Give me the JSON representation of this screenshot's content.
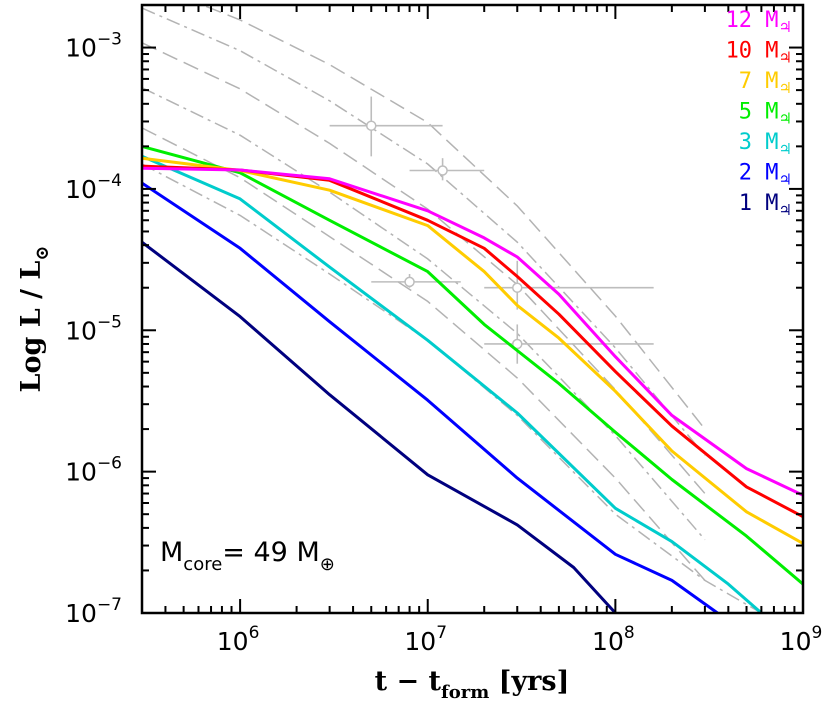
{
  "chart_data": {
    "type": "line",
    "xscale": "log",
    "yscale": "log",
    "xlim": [
      300000,
      1000000000
    ],
    "ylim": [
      1e-07,
      0.002
    ],
    "grid": false,
    "legend_position": "top-right",
    "xlabel": {
      "main": "t  −  t",
      "sub": "form",
      "tail": " [yrs]"
    },
    "ylabel": {
      "main": "Log L / L",
      "sub": "⊙"
    },
    "x_ticks": [
      {
        "value": 1000000,
        "base": "10",
        "exp": "6"
      },
      {
        "value": 10000000,
        "base": "10",
        "exp": "7"
      },
      {
        "value": 100000000,
        "base": "10",
        "exp": "8"
      },
      {
        "value": 1000000000,
        "base": "10",
        "exp": "9"
      }
    ],
    "y_ticks": [
      {
        "value": 0.001,
        "base": "10",
        "exp": "−3"
      },
      {
        "value": 0.0001,
        "base": "10",
        "exp": "−4"
      },
      {
        "value": 1e-05,
        "base": "10",
        "exp": "−5"
      },
      {
        "value": 1e-06,
        "base": "10",
        "exp": "−6"
      },
      {
        "value": 1e-07,
        "base": "10",
        "exp": "−7"
      }
    ],
    "annotation": {
      "prefix": "M",
      "sub": "core",
      "suffix": "=  49  M",
      "sub2": "⊕"
    },
    "series": [
      {
        "name": "12 M",
        "sub": "♃",
        "color": "#ff00ff",
        "x": [
          300000,
          1000000,
          3000000,
          10000000,
          20000000,
          30000000,
          50000000,
          100000000,
          200000000,
          500000000,
          1000000000
        ],
        "y": [
          0.00014,
          0.000136,
          0.000118,
          7e-05,
          4.5e-05,
          3.3e-05,
          1.8e-05,
          6.5e-06,
          2.5e-06,
          1.05e-06,
          6.8e-07
        ]
      },
      {
        "name": "10 M",
        "sub": "♃",
        "color": "#ff0000",
        "x": [
          300000,
          1000000,
          3000000,
          10000000,
          20000000,
          30000000,
          50000000,
          100000000,
          200000000,
          500000000,
          1000000000
        ],
        "y": [
          0.000145,
          0.000136,
          0.000115,
          6e-05,
          3.8e-05,
          2.4e-05,
          1.3e-05,
          5.1e-06,
          2.1e-06,
          7.8e-07,
          4.8e-07
        ]
      },
      {
        "name": "7 M",
        "sub": "♃",
        "color": "#ffcc00",
        "x": [
          300000,
          1000000,
          3000000,
          10000000,
          20000000,
          30000000,
          50000000,
          100000000,
          200000000,
          500000000,
          1000000000
        ],
        "y": [
          0.000165,
          0.000135,
          9.8e-05,
          5.5e-05,
          2.6e-05,
          1.5e-05,
          8.8e-06,
          3.7e-06,
          1.4e-06,
          5.2e-07,
          3.1e-07
        ]
      },
      {
        "name": "5 M",
        "sub": "♃",
        "color": "#00ee00",
        "x": [
          300000,
          1000000,
          3000000,
          10000000,
          20000000,
          50000000,
          100000000,
          200000000,
          500000000,
          1000000000
        ],
        "y": [
          0.0002,
          0.00013,
          6e-05,
          2.6e-05,
          1.1e-05,
          4.2e-06,
          1.9e-06,
          8.8e-07,
          3.5e-07,
          1.6e-07
        ]
      },
      {
        "name": "3 M",
        "sub": "♃",
        "color": "#00cccc",
        "x": [
          300000,
          1000000,
          3000000,
          10000000,
          30000000,
          100000000,
          200000000,
          400000000,
          600000000
        ],
        "y": [
          0.00017,
          8.5e-05,
          2.8e-05,
          8.5e-06,
          2.6e-06,
          5.5e-07,
          3.2e-07,
          1.6e-07,
          1e-07
        ]
      },
      {
        "name": "2 M",
        "sub": "♃",
        "color": "#0000ff",
        "x": [
          300000,
          1000000,
          3000000,
          10000000,
          30000000,
          100000000,
          200000000,
          350000000
        ],
        "y": [
          0.00011,
          3.8e-05,
          1.15e-05,
          3.2e-06,
          9e-07,
          2.6e-07,
          1.7e-07,
          1e-07
        ]
      },
      {
        "name": "1 M",
        "sub": "♃",
        "color": "#00007f",
        "x": [
          300000,
          1000000,
          3000000,
          10000000,
          30000000,
          60000000,
          100000000
        ],
        "y": [
          4.2e-05,
          1.25e-05,
          3.5e-06,
          9.5e-07,
          4.2e-07,
          2.1e-07,
          1e-07
        ]
      }
    ],
    "reference_curves": [
      {
        "x": [
          300000,
          1000000,
          3000000,
          10000000,
          30000000,
          100000000,
          300000000
        ],
        "y": [
          0.00295,
          0.00157,
          0.000757,
          0.000295,
          7.57e-05,
          1.26e-05,
          2e-06
        ]
      },
      {
        "x": [
          300000,
          1000000,
          3000000,
          10000000,
          30000000,
          100000000,
          300000000
        ],
        "y": [
          0.0019,
          0.00095,
          0.00042,
          0.00015,
          4.2e-05,
          7.5e-06,
          1.3e-06
        ]
      },
      {
        "x": [
          300000,
          1000000,
          3000000,
          10000000,
          30000000,
          100000000,
          300000000
        ],
        "y": [
          0.00108,
          0.00051,
          0.00021,
          7.2e-05,
          2.1e-05,
          3.8e-06,
          7e-07
        ]
      },
      {
        "x": [
          300000,
          1000000,
          3000000,
          10000000,
          30000000,
          100000000,
          300000000
        ],
        "y": [
          0.00052,
          0.00024,
          9.5e-05,
          3.2e-05,
          9.5e-06,
          1.8e-06,
          3.3e-07
        ]
      },
      {
        "x": [
          300000,
          1000000,
          3000000,
          10000000,
          30000000,
          100000000,
          300000000
        ],
        "y": [
          0.00027,
          0.00012,
          4.6e-05,
          1.6e-05,
          4.6e-06,
          9e-07,
          1.7e-07
        ]
      },
      {
        "x": [
          300000,
          1000000,
          3000000,
          10000000,
          30000000,
          100000000,
          300000000,
          600000000
        ],
        "y": [
          0.00015,
          6.5e-05,
          2.5e-05,
          8.5e-06,
          2.5e-06,
          5e-07,
          1.7e-07,
          1e-07
        ]
      }
    ],
    "data_points": [
      {
        "x": 5000000,
        "y": 0.00028,
        "xerr": [
          3000000,
          12000000
        ],
        "yerr": [
          0.00017,
          0.00045
        ]
      },
      {
        "x": 12000000,
        "y": 0.000135,
        "xerr": [
          8000000,
          20000000
        ],
        "yerr": [
          0.000115,
          0.000165
        ]
      },
      {
        "x": 8000000,
        "y": 2.2e-05,
        "xerr": [
          5000000,
          15000000
        ],
        "yerr": [
          2e-05,
          2.5e-05
        ]
      },
      {
        "x": 30000000,
        "y": 2e-05,
        "xerr": [
          20000000,
          160000000
        ],
        "yerr": [
          1.4e-05,
          3.1e-05
        ]
      },
      {
        "x": 30000000,
        "y": 8e-06,
        "xerr": [
          20000000,
          160000000
        ],
        "yerr": [
          5.8e-06,
          1.1e-05
        ]
      }
    ]
  }
}
